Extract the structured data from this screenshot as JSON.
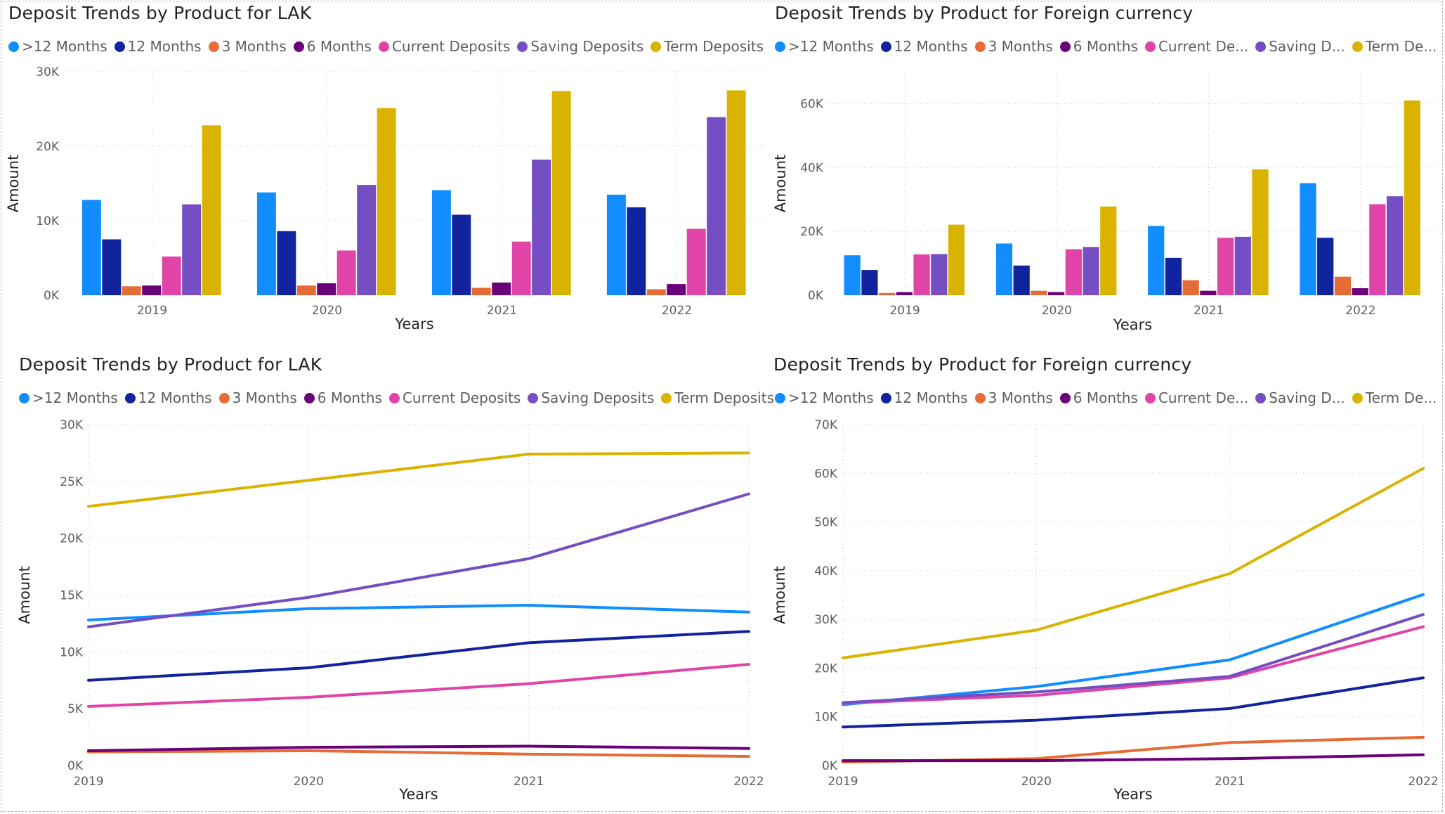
{
  "colors": {
    "gt12": "#118dff",
    "m12": "#12239e",
    "m3": "#e66c37",
    "m6": "#6b007b",
    "current": "#e044a7",
    "saving": "#744ec2",
    "term": "#d9b300",
    "grid": "#c8c6c4"
  },
  "chart_data": [
    {
      "type": "bar",
      "title": "Deposit Trends by Product for LAK",
      "xlabel": "Years",
      "ylabel": "Amount",
      "categories": [
        "2019",
        "2020",
        "2021",
        "2022"
      ],
      "ylim": [
        0,
        30000
      ],
      "yticks": [
        "0K",
        "10K",
        "20K",
        "30K"
      ],
      "legend_position": "top-left",
      "grid": true,
      "series": [
        {
          "name": ">12 Months",
          "color_key": "gt12",
          "values": [
            12800,
            13800,
            14100,
            13500
          ]
        },
        {
          "name": "12 Months",
          "color_key": "m12",
          "values": [
            7500,
            8600,
            10800,
            11800
          ]
        },
        {
          "name": "3 Months",
          "color_key": "m3",
          "values": [
            1200,
            1300,
            1000,
            800
          ]
        },
        {
          "name": "6 Months",
          "color_key": "m6",
          "values": [
            1300,
            1600,
            1700,
            1500
          ]
        },
        {
          "name": "Current Deposits",
          "color_key": "current",
          "values": [
            5200,
            6000,
            7200,
            8900
          ]
        },
        {
          "name": "Saving Deposits",
          "color_key": "saving",
          "values": [
            12200,
            14800,
            18200,
            23900
          ]
        },
        {
          "name": "Term Deposits",
          "color_key": "term",
          "values": [
            22800,
            25100,
            27400,
            27500
          ]
        }
      ]
    },
    {
      "type": "bar",
      "title": "Deposit Trends by Product for Foreign currency",
      "xlabel": "Years",
      "ylabel": "Amount",
      "categories": [
        "2019",
        "2020",
        "2021",
        "2022"
      ],
      "ylim": [
        0,
        70000
      ],
      "yticks": [
        "0K",
        "20K",
        "40K",
        "60K"
      ],
      "legend_position": "top-left",
      "grid": true,
      "series": [
        {
          "name": ">12 Months",
          "color_key": "gt12",
          "values": [
            12500,
            16200,
            21700,
            35100
          ]
        },
        {
          "name": "12 Months",
          "color_key": "m12",
          "values": [
            7900,
            9300,
            11700,
            18000
          ]
        },
        {
          "name": "3 Months",
          "color_key": "m3",
          "values": [
            700,
            1400,
            4700,
            5800
          ]
        },
        {
          "name": "6 Months",
          "color_key": "m6",
          "values": [
            1000,
            1000,
            1400,
            2200
          ]
        },
        {
          "name": "Current De...",
          "color_key": "current",
          "values": [
            12800,
            14400,
            18000,
            28500
          ]
        },
        {
          "name": "Saving D...",
          "color_key": "saving",
          "values": [
            12900,
            15100,
            18300,
            31000
          ]
        },
        {
          "name": "Term De...",
          "color_key": "term",
          "values": [
            22100,
            27800,
            39400,
            61000
          ]
        }
      ]
    },
    {
      "type": "line",
      "title": "Deposit Trends by Product for LAK",
      "xlabel": "Years",
      "ylabel": "Amount",
      "categories": [
        "2019",
        "2020",
        "2021",
        "2022"
      ],
      "ylim": [
        0,
        30000
      ],
      "yticks": [
        "0K",
        "5K",
        "10K",
        "15K",
        "20K",
        "25K",
        "30K"
      ],
      "legend_position": "top-left",
      "grid": true,
      "series": [
        {
          "name": ">12 Months",
          "color_key": "gt12",
          "values": [
            12800,
            13800,
            14100,
            13500
          ]
        },
        {
          "name": "12 Months",
          "color_key": "m12",
          "values": [
            7500,
            8600,
            10800,
            11800
          ]
        },
        {
          "name": "3 Months",
          "color_key": "m3",
          "values": [
            1200,
            1300,
            1000,
            800
          ]
        },
        {
          "name": "6 Months",
          "color_key": "m6",
          "values": [
            1300,
            1600,
            1700,
            1500
          ]
        },
        {
          "name": "Current Deposits",
          "color_key": "current",
          "values": [
            5200,
            6000,
            7200,
            8900
          ]
        },
        {
          "name": "Saving Deposits",
          "color_key": "saving",
          "values": [
            12200,
            14800,
            18200,
            23900
          ]
        },
        {
          "name": "Term Deposits",
          "color_key": "term",
          "values": [
            22800,
            25100,
            27400,
            27500
          ]
        }
      ]
    },
    {
      "type": "line",
      "title": "Deposit Trends by Product for Foreign currency",
      "xlabel": "Years",
      "ylabel": "Amount",
      "categories": [
        "2019",
        "2020",
        "2021",
        "2022"
      ],
      "ylim": [
        0,
        70000
      ],
      "yticks": [
        "0K",
        "10K",
        "20K",
        "30K",
        "40K",
        "50K",
        "60K",
        "70K"
      ],
      "legend_position": "top-left",
      "grid": true,
      "series": [
        {
          "name": ">12 Months",
          "color_key": "gt12",
          "values": [
            12500,
            16200,
            21700,
            35100
          ]
        },
        {
          "name": "12 Months",
          "color_key": "m12",
          "values": [
            7900,
            9300,
            11700,
            18000
          ]
        },
        {
          "name": "3 Months",
          "color_key": "m3",
          "values": [
            700,
            1400,
            4700,
            5800
          ]
        },
        {
          "name": "6 Months",
          "color_key": "m6",
          "values": [
            1000,
            1000,
            1400,
            2200
          ]
        },
        {
          "name": "Current De...",
          "color_key": "current",
          "values": [
            12800,
            14400,
            18000,
            28500
          ]
        },
        {
          "name": "Saving D...",
          "color_key": "saving",
          "values": [
            12900,
            15100,
            18300,
            31000
          ]
        },
        {
          "name": "Term De...",
          "color_key": "term",
          "values": [
            22100,
            27800,
            39400,
            61000
          ]
        }
      ]
    }
  ]
}
